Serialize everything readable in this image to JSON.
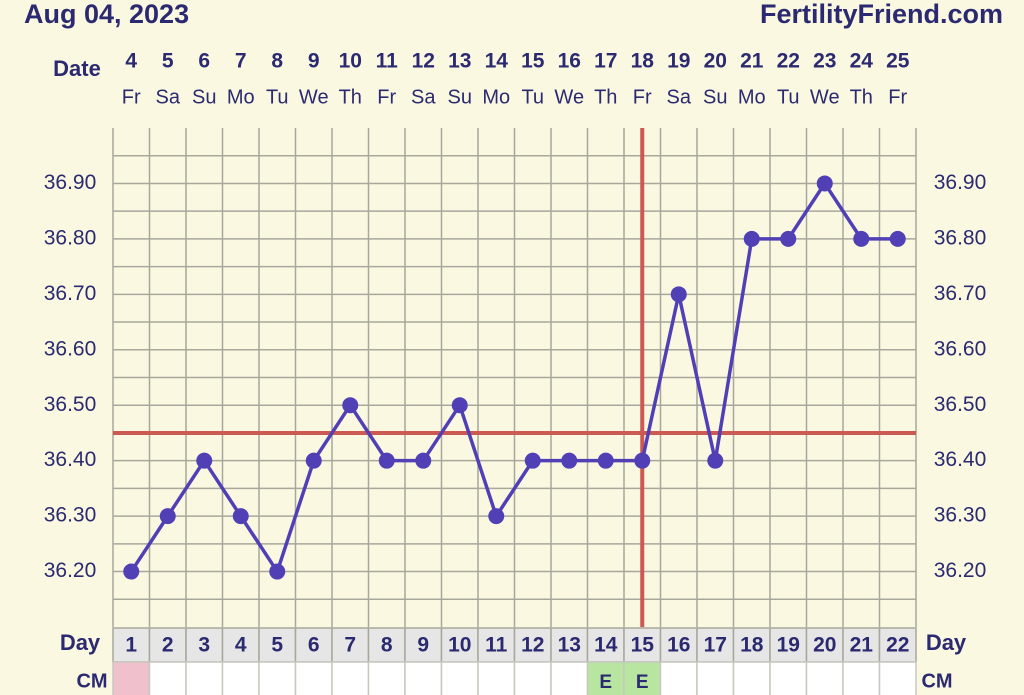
{
  "chart_data": {
    "type": "line",
    "title": "Aug 04, 2023",
    "site": "FertilityFriend.com",
    "date_label": "Date",
    "day_label": "Day",
    "cm_label": "CM",
    "dates": [
      4,
      5,
      6,
      7,
      8,
      9,
      10,
      11,
      12,
      13,
      14,
      15,
      16,
      17,
      18,
      19,
      20,
      21,
      22,
      23,
      24,
      25
    ],
    "weekdays": [
      "Fr",
      "Sa",
      "Su",
      "Mo",
      "Tu",
      "We",
      "Th",
      "Fr",
      "Sa",
      "Su",
      "Mo",
      "Tu",
      "We",
      "Th",
      "Fr",
      "Sa",
      "Su",
      "Mo",
      "Tu",
      "We",
      "Th",
      "Fr"
    ],
    "categories": [
      1,
      2,
      3,
      4,
      5,
      6,
      7,
      8,
      9,
      10,
      11,
      12,
      13,
      14,
      15,
      16,
      17,
      18,
      19,
      20,
      21,
      22
    ],
    "series": [
      {
        "color": "#5140b5",
        "values": [
          36.2,
          36.3,
          36.4,
          36.3,
          36.2,
          36.4,
          36.5,
          36.4,
          36.4,
          36.5,
          36.3,
          36.4,
          36.4,
          36.4,
          36.4,
          36.7,
          36.4,
          36.8,
          36.8,
          36.9,
          36.8,
          36.8
        ]
      }
    ],
    "cm": [
      null,
      null,
      null,
      null,
      null,
      null,
      null,
      null,
      null,
      null,
      null,
      null,
      null,
      "E",
      "E",
      null,
      null,
      null,
      null,
      null,
      null,
      null
    ],
    "cm_colors": [
      "#f0c0cc",
      null,
      null,
      null,
      null,
      null,
      null,
      null,
      null,
      null,
      null,
      null,
      null,
      "#b8e6a0",
      "#b8e6a0",
      null,
      null,
      null,
      null,
      null,
      null,
      null
    ],
    "coverline": 36.45,
    "coverline_color": "#cc5a52",
    "ovulation_day": 15,
    "ylim": [
      36.1,
      37.0
    ],
    "yticks": [
      {
        "value": 36.2,
        "label": "36.20"
      },
      {
        "value": 36.3,
        "label": "36.30"
      },
      {
        "value": 36.4,
        "label": "36.40"
      },
      {
        "value": 36.5,
        "label": "36.50"
      },
      {
        "value": 36.6,
        "label": "36.60"
      },
      {
        "value": 36.7,
        "label": "36.70"
      },
      {
        "value": 36.8,
        "label": "36.80"
      },
      {
        "value": 36.9,
        "label": "36.90"
      }
    ],
    "yminorticks": [
      36.15,
      36.25,
      36.35,
      36.45,
      36.55,
      36.65,
      36.75,
      36.85,
      36.95
    ],
    "grid": true
  }
}
